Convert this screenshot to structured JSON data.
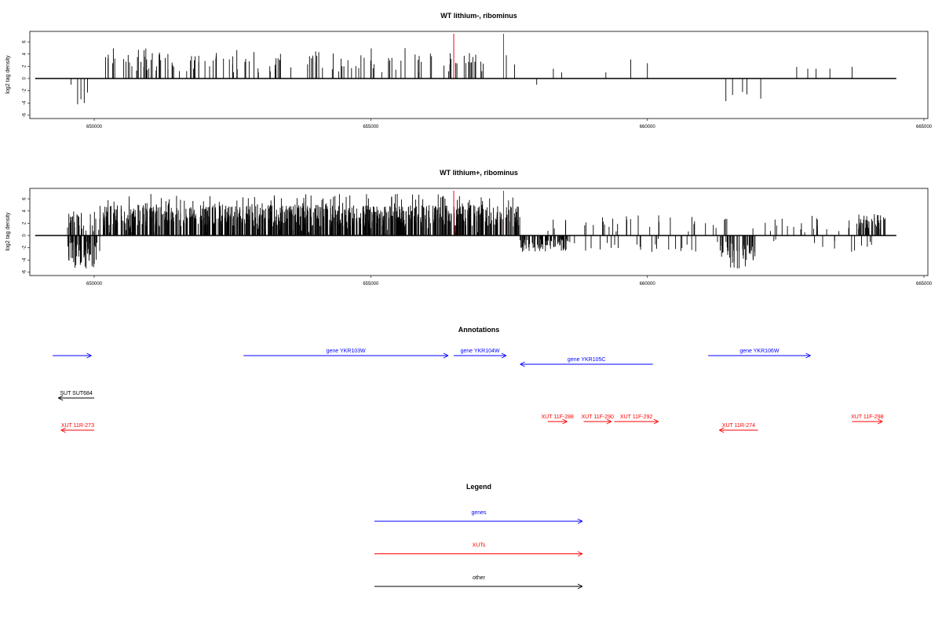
{
  "chart_data": [
    {
      "type": "bar",
      "title": "WT lithium-, ribominus",
      "ylabel": "log2 tag density",
      "xlim": [
        649400,
        664600
      ],
      "ylim": [
        -6,
        7
      ],
      "xticks": [
        650000,
        655000,
        660000,
        665000
      ],
      "xtick_labels": [
        "650000",
        "655000",
        "660000",
        "665000"
      ],
      "yticks": [
        -6,
        -4,
        -2,
        0,
        2,
        4,
        6
      ],
      "ytick_labels": [
        "-6",
        "-4",
        "-2",
        "0",
        "2",
        "4",
        "6"
      ],
      "baseline": [
        649500,
        664500
      ],
      "red_markers": [
        656500,
        657400
      ],
      "series_color": "#000000",
      "marker_color": "#ff0000"
    },
    {
      "type": "bar",
      "title": "WT lithium+, ribominus",
      "ylabel": "log2 tag density",
      "xlim": [
        649400,
        664600
      ],
      "ylim": [
        -6,
        7
      ],
      "xticks": [
        650000,
        655000,
        660000,
        665000
      ],
      "xtick_labels": [
        "650000",
        "655000",
        "660000",
        "665000"
      ],
      "yticks": [
        -6,
        -4,
        -2,
        0,
        2,
        4,
        6
      ],
      "ytick_labels": [
        "-6",
        "-4",
        "-2",
        "0",
        "2",
        "4",
        "6"
      ],
      "baseline": [
        649500,
        664500
      ],
      "red_markers": [
        656500,
        657400
      ],
      "series_color": "#000000",
      "marker_color": "#ff0000"
    }
  ],
  "annotations": {
    "title": "Annotations",
    "features": [
      {
        "label": "",
        "start": 649250,
        "end": 649950,
        "strand": "+",
        "kind": "gene",
        "row": 0
      },
      {
        "label": "gene YKR103W",
        "start": 652700,
        "end": 656400,
        "strand": "+",
        "kind": "gene",
        "row": 0
      },
      {
        "label": "gene YKR104W",
        "start": 656500,
        "end": 657450,
        "strand": "+",
        "kind": "gene",
        "row": 0
      },
      {
        "label": "gene YKR105C",
        "start": 657700,
        "end": 660100,
        "strand": "-",
        "kind": "gene",
        "row": 1
      },
      {
        "label": "gene YKR106W",
        "start": 661100,
        "end": 662950,
        "strand": "+",
        "kind": "gene",
        "row": 0
      },
      {
        "label": "SUT SUT684",
        "start": 649350,
        "end": 650000,
        "strand": "-",
        "kind": "other",
        "row": 2
      },
      {
        "label": "XUT 11F-288",
        "start": 658200,
        "end": 658550,
        "strand": "+",
        "kind": "xut",
        "row": 3
      },
      {
        "label": "XUT 11F-290",
        "start": 658850,
        "end": 659350,
        "strand": "+",
        "kind": "xut",
        "row": 3
      },
      {
        "label": "XUT 11F-292",
        "start": 659400,
        "end": 660200,
        "strand": "+",
        "kind": "xut",
        "row": 3
      },
      {
        "label": "XUT 11F-298",
        "start": 663700,
        "end": 664250,
        "strand": "+",
        "kind": "xut",
        "row": 3
      },
      {
        "label": "XUT 11R-273",
        "start": 649400,
        "end": 650000,
        "strand": "-",
        "kind": "xut",
        "row": 4
      },
      {
        "label": "XUT 11R-274",
        "start": 661300,
        "end": 662000,
        "strand": "-",
        "kind": "xut",
        "row": 4
      }
    ]
  },
  "legend": {
    "title": "Legend",
    "items": [
      {
        "label": "genes",
        "color": "#0000ff"
      },
      {
        "label": "XUTs",
        "color": "#ff0000"
      },
      {
        "label": "other",
        "color": "#000000"
      }
    ]
  },
  "colors": {
    "gene": "#0000ff",
    "xut": "#ff0000",
    "other": "#000000"
  }
}
